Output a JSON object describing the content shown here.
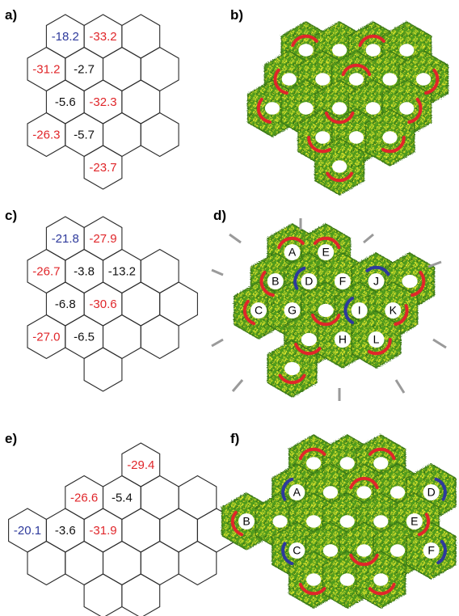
{
  "colors": {
    "red": "#e0262a",
    "blue": "#2e3a9c",
    "black": "#111111",
    "current_green": "#3f8f1c",
    "current_yellow": "#d6df2a",
    "hydrogen_grey": "#9a9a9a"
  },
  "panels": [
    {
      "key": "a",
      "label": "a)",
      "values": [
        {
          "text": "-18.2",
          "color": "blue"
        },
        {
          "text": "-33.2",
          "color": "red"
        },
        {
          "text": "-31.2",
          "color": "red"
        },
        {
          "text": "-2.7",
          "color": "black"
        },
        {
          "text": "-5.6",
          "color": "black"
        },
        {
          "text": "-32.3",
          "color": "red"
        },
        {
          "text": "-26.3",
          "color": "red"
        },
        {
          "text": "-5.7",
          "color": "black"
        },
        {
          "text": "-23.7",
          "color": "red"
        }
      ]
    },
    {
      "key": "b",
      "label": "b)",
      "ring_labels": []
    },
    {
      "key": "c",
      "label": "c)",
      "values": [
        {
          "text": "-21.8",
          "color": "blue"
        },
        {
          "text": "-27.9",
          "color": "red"
        },
        {
          "text": "-26.7",
          "color": "red"
        },
        {
          "text": "-3.8",
          "color": "black"
        },
        {
          "text": "-13.2",
          "color": "black"
        },
        {
          "text": "-6.8",
          "color": "black"
        },
        {
          "text": "-30.6",
          "color": "red"
        },
        {
          "text": "-27.0",
          "color": "red"
        },
        {
          "text": "-6.5",
          "color": "black"
        }
      ]
    },
    {
      "key": "d",
      "label": "d)",
      "ring_labels": [
        "A",
        "B",
        "C",
        "D",
        "E",
        "F",
        "G",
        "H",
        "I",
        "J",
        "K",
        "L"
      ]
    },
    {
      "key": "e",
      "label": "e)",
      "values": [
        {
          "text": "-29.4",
          "color": "red"
        },
        {
          "text": "-26.6",
          "color": "red"
        },
        {
          "text": "-5.4",
          "color": "black"
        },
        {
          "text": "-20.1",
          "color": "blue"
        },
        {
          "text": "-3.6",
          "color": "black"
        },
        {
          "text": "-31.9",
          "color": "red"
        }
      ]
    },
    {
      "key": "f",
      "label": "f)",
      "ring_labels": [
        "A",
        "B",
        "C",
        "D",
        "E",
        "F"
      ]
    }
  ]
}
